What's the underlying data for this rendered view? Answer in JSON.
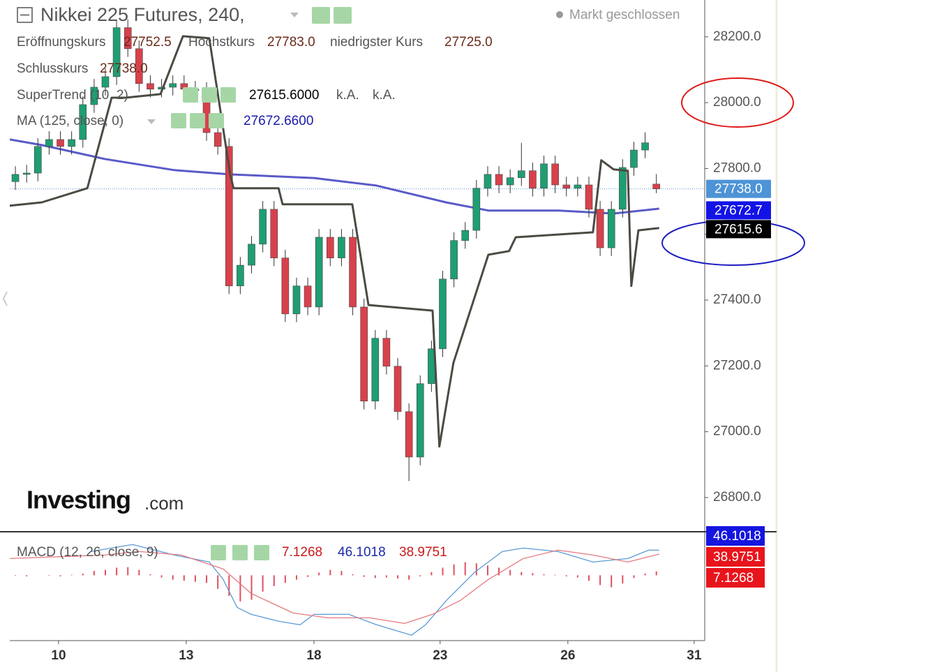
{
  "chart_data": [
    {
      "type": "candlestick",
      "title": "Nikkei 225 Futures, 240,",
      "status": "Markt geschlossen",
      "logo": [
        "Investing",
        ".com"
      ],
      "ohlc": {
        "open_label": "Eröffnungskurs",
        "open": 27752.5,
        "high_label": "Hochstkurs",
        "high": {
          "value": 27783,
          "label": "27783.0"
        },
        "low_label": "niedrigster Kurs",
        "low": {
          "value": 27725,
          "label": "27725.0"
        },
        "close_label": "Schlusskurs",
        "close": {
          "value": 27738,
          "label": "27738.0"
        }
      },
      "up_color": "#1f9e73",
      "down_color": "#d8414c",
      "open": [
        27760,
        27782,
        27786,
        27867,
        27888,
        27867,
        27888,
        27994,
        28047,
        28079,
        28228,
        28164,
        28058,
        28041,
        28047,
        28058,
        28041,
        28037,
        27909,
        27867,
        27443,
        27506,
        27570,
        27676,
        27528,
        27358,
        27443,
        27379,
        27591,
        27528,
        27591,
        27379,
        27093,
        27284,
        27199,
        27061,
        26923,
        27146,
        27252,
        27464,
        27581,
        27612,
        27740,
        27782,
        27750,
        27772,
        27793,
        27740,
        27814,
        27750,
        27740,
        27750,
        27676,
        27559,
        27676,
        27803,
        27856,
        27752.5
      ],
      "high": [
        27807,
        27811,
        27892,
        27913,
        27913,
        27913,
        28019,
        28072,
        28104,
        28253,
        28253,
        28189,
        28083,
        28072,
        28083,
        28083,
        28066,
        28062,
        27934,
        27892,
        27531,
        27595,
        27701,
        27701,
        27553,
        27468,
        27468,
        27616,
        27616,
        27616,
        27616,
        27404,
        27309,
        27309,
        27224,
        27086,
        27171,
        27277,
        27489,
        27606,
        27637,
        27765,
        27807,
        27807,
        27797,
        27878,
        27818,
        27839,
        27839,
        27775,
        27775,
        27775,
        27701,
        27701,
        27828,
        27881,
        27910,
        27783
      ],
      "low": [
        27735,
        27757,
        27761,
        27842,
        27842,
        27842,
        27863,
        27969,
        28022,
        28054,
        28139,
        28033,
        28016,
        28016,
        28022,
        28016,
        28012,
        27884,
        27842,
        27418,
        27418,
        27481,
        27545,
        27503,
        27333,
        27333,
        27354,
        27354,
        27503,
        27503,
        27354,
        27068,
        27068,
        27174,
        27036,
        26850,
        26898,
        27121,
        27227,
        27439,
        27556,
        27587,
        27715,
        27725,
        27725,
        27747,
        27715,
        27715,
        27725,
        27715,
        27715,
        27651,
        27534,
        27534,
        27651,
        27778,
        27831,
        27725
      ],
      "close": [
        27782,
        27786,
        27867,
        27888,
        27867,
        27888,
        27994,
        28047,
        28079,
        28228,
        28164,
        28058,
        28041,
        28047,
        28058,
        28041,
        28037,
        27909,
        27867,
        27443,
        27506,
        27570,
        27676,
        27528,
        27358,
        27443,
        27379,
        27591,
        27528,
        27591,
        27379,
        27093,
        27284,
        27199,
        27061,
        26923,
        27146,
        27252,
        27464,
        27581,
        27612,
        27740,
        27782,
        27750,
        27772,
        27793,
        27740,
        27814,
        27750,
        27740,
        27750,
        27676,
        27559,
        27676,
        27803,
        27856,
        27878,
        27738
      ],
      "series": [
        {
          "name": "SuperTrend (10, 2)",
          "color": "#4b4b43",
          "legend_value": {
            "value": 27615.6,
            "label": "27615.6000"
          },
          "legend_extra": [
            "k.A.",
            "k.A."
          ],
          "x": [
            0,
            2.85,
            6.9,
            9.06,
            10.3,
            13.4,
            15.4,
            17.74,
            19.6,
            19.9,
            23.9,
            24.26,
            30.46,
            31.9,
            37.6,
            38.2,
            39.45,
            42.56,
            44.4,
            45.0,
            51.86,
            52.6,
            53.7,
            54.96,
            55.27,
            55.9,
            57.75
          ],
          "values": [
            27687,
            27697,
            27740,
            28015,
            28015,
            28026,
            28202,
            28196,
            27782,
            27740,
            27740,
            27691,
            27691,
            27385,
            27368,
            26955,
            27209,
            27538,
            27549,
            27591,
            27606,
            27825,
            27797,
            27793,
            27443,
            27612,
            27619
          ]
        },
        {
          "name": "MA (125, close, 0)",
          "color": "#5a5ac8",
          "legend_value": {
            "value": 27672.66,
            "label": "27672.6600"
          },
          "x": [
            0,
            2.85,
            8.44,
            14.64,
            19.6,
            27.05,
            32.6,
            38.8,
            42.6,
            48.8,
            53.7,
            57.75
          ],
          "values": [
            27888,
            27871,
            27829,
            27795,
            27782,
            27771,
            27748,
            27697,
            27672,
            27672,
            27663,
            27678
          ]
        }
      ],
      "price_tags": [
        {
          "value": 27738,
          "label": "27738.0",
          "color": "#4d93d6"
        },
        {
          "value": 27672.7,
          "color": "#1313e6"
        },
        {
          "value": 27615.6,
          "color": "#000000"
        }
      ],
      "ylim": [
        26696,
        28312
      ],
      "yticks": [
        {
          "value": 26800,
          "label": "26800.0"
        },
        {
          "value": 27000,
          "label": "27000.0"
        },
        {
          "value": 27200,
          "label": "27200.0"
        },
        {
          "value": 27400,
          "label": "27400.0"
        },
        {
          "value": 27600,
          "label": "27600.0"
        },
        {
          "value": 27800,
          "label": "27800.0"
        },
        {
          "value": 28000,
          "label": "28000.0"
        },
        {
          "value": 28200,
          "label": "28200.0"
        }
      ],
      "xlim": [
        0,
        61.8
      ],
      "xticks": [
        {
          "value": 4.34,
          "label": "10"
        },
        {
          "value": 15.69,
          "label": "13"
        },
        {
          "value": 27.05,
          "label": "18"
        },
        {
          "value": 38.27,
          "label": "23"
        },
        {
          "value": 49.63,
          "label": "26"
        },
        {
          "value": 60.86,
          "label": "31"
        }
      ]
    },
    {
      "type": "macd",
      "title": "MACD (12, 26, close, 9)",
      "histogram_value": 7.1268,
      "macd_value": 46.1018,
      "signal_value": 38.9751,
      "tag_colors": [
        "#1515e0",
        "#e8141c",
        "#e8141c"
      ],
      "histogram": {
        "color": "#e0505e",
        "values": [
          -1,
          -2,
          0,
          -1,
          -2,
          1,
          3,
          8,
          10,
          14,
          15,
          10,
          2,
          -4,
          -8,
          -10,
          -12,
          -14,
          -25,
          -38,
          -48,
          -45,
          -30,
          -20,
          -14,
          -8,
          -3,
          5,
          10,
          8,
          2,
          -3,
          -5,
          -4,
          -6,
          -8,
          -2,
          6,
          14,
          20,
          24,
          22,
          18,
          14,
          10,
          6,
          4,
          2,
          1,
          -2,
          -4,
          -10,
          -18,
          -22,
          -15,
          -5,
          3,
          7.1268
        ]
      },
      "series": [
        {
          "color": "#5b9bd5",
          "x": [
            7.2,
            10.92,
            14.64,
            17.74,
            18.98,
            20.22,
            21.46,
            23.95,
            25.81,
            27.05,
            30.15,
            32.63,
            35.73,
            36.97,
            38.83,
            41.32,
            43.8,
            45.66,
            48.76,
            51.86,
            54.96,
            56.82,
            57.75
          ],
          "values": [
            43.6,
            56.4,
            37.2,
            24.4,
            -7.7,
            -59,
            -71.8,
            -84.6,
            -91,
            -71.8,
            -71.8,
            -91,
            -110,
            -91,
            -46.2,
            5.1,
            43.6,
            50,
            43.6,
            24.4,
            30.8,
            46.1,
            46.1018
          ]
        },
        {
          "color": "#e57a80",
          "x": [
            0,
            8.44,
            11.54,
            15.26,
            18.98,
            21.46,
            25.19,
            28.29,
            32.01,
            35.11,
            37.59,
            40.07,
            42.56,
            45.66,
            48.76,
            51.86,
            54.96,
            57.75
          ],
          "values": [
            30.8,
            37.2,
            43.6,
            37.2,
            11.5,
            -33.3,
            -69.2,
            -78.2,
            -78.2,
            -88.5,
            -71.8,
            -46.2,
            -7.7,
            30.8,
            46.2,
            37.2,
            24.4,
            38.9751
          ]
        }
      ],
      "ylim": [
        -120,
        80
      ],
      "xlim": [
        0,
        61.8
      ]
    }
  ]
}
